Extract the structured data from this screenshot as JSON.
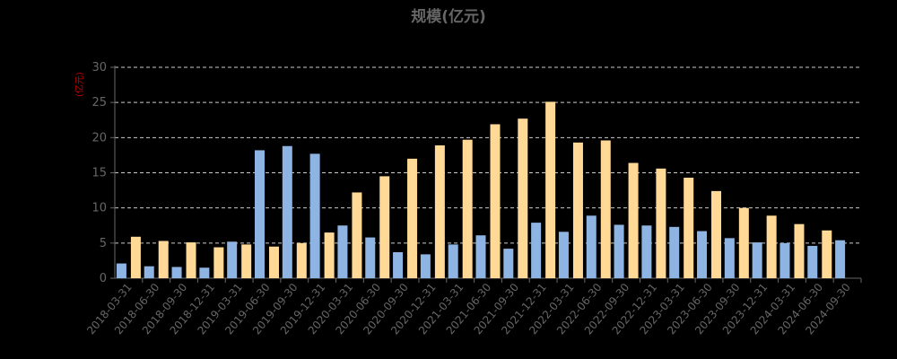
{
  "chart_data": {
    "type": "bar",
    "title": "规模(亿元)",
    "ylabel": "(亿元)",
    "xlabel": "",
    "ylim": [
      0,
      30
    ],
    "yticks": [
      0,
      5,
      10,
      15,
      20,
      25,
      30
    ],
    "grid": "horizontal-dashed",
    "colors": {
      "series1": "#8eb4e3",
      "series2": "#ffd995",
      "axis": "#666666",
      "grid": "#cccccc"
    },
    "categories": [
      "2018-03-31",
      "2018-06-30",
      "2018-09-30",
      "2018-12-31",
      "2019-03-31",
      "2019-06-30",
      "2019-09-30",
      "2019-12-31",
      "2020-03-31",
      "2020-06-30",
      "2020-09-30",
      "2020-12-31",
      "2021-03-31",
      "2021-06-30",
      "2021-09-30",
      "2021-12-31",
      "2022-03-31",
      "2022-06-30",
      "2022-09-30",
      "2022-12-31",
      "2023-03-31",
      "2023-06-30",
      "2023-09-30",
      "2023-12-31",
      "2024-03-31",
      "2024-06-30",
      "2024-09-30"
    ],
    "series": [
      {
        "values": [
          2.1,
          1.7,
          1.6,
          1.5,
          5.2,
          18.2,
          18.8,
          17.7,
          7.5,
          5.8,
          3.7,
          3.4,
          4.8,
          6.1,
          4.2,
          7.9,
          6.6,
          8.9,
          7.6,
          7.5,
          7.3,
          6.7,
          5.7,
          5.1,
          5.0,
          4.6,
          5.4
        ]
      },
      {
        "values": [
          5.9,
          5.3,
          5.1,
          4.4,
          4.8,
          4.5,
          5.0,
          6.5,
          12.2,
          14.5,
          17.0,
          18.9,
          19.7,
          21.9,
          22.7,
          25.1,
          19.3,
          19.6,
          16.4,
          15.6,
          14.3,
          12.4,
          10.0,
          8.9,
          7.7,
          6.8,
          null
        ]
      }
    ]
  }
}
